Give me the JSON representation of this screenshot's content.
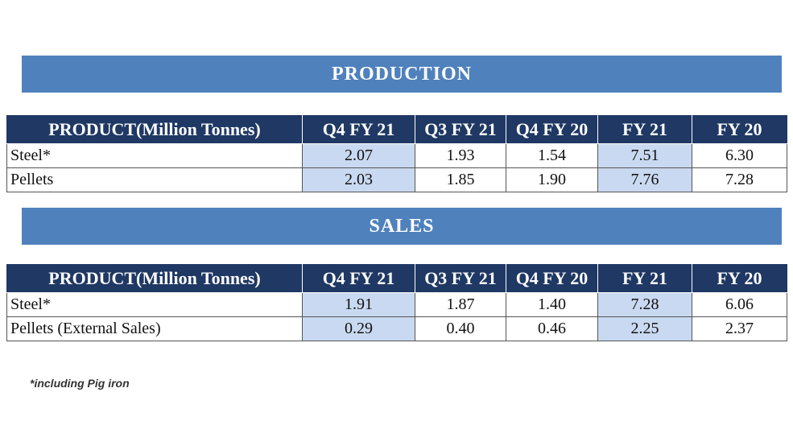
{
  "production": {
    "title": "PRODUCTION",
    "headers": [
      "PRODUCT(Million Tonnes)",
      "Q4 FY 21",
      "Q3 FY 21",
      "Q4 FY 20",
      "FY 21",
      "FY 20"
    ],
    "rows": [
      {
        "product": "Steel*",
        "values": [
          "2.07",
          "1.93",
          "1.54",
          "7.51",
          "6.30"
        ]
      },
      {
        "product": "Pellets",
        "values": [
          "2.03",
          "1.85",
          "1.90",
          "7.76",
          "7.28"
        ]
      }
    ]
  },
  "sales": {
    "title": "SALES",
    "headers": [
      "PRODUCT(Million Tonnes)",
      "Q4 FY 21",
      "Q3 FY 21",
      "Q4 FY 20",
      "FY 21",
      "FY 20"
    ],
    "rows": [
      {
        "product": "Steel*",
        "values": [
          "1.91",
          "1.87",
          "1.40",
          "7.28",
          "6.06"
        ]
      },
      {
        "product": "Pellets (External Sales)",
        "values": [
          "0.29",
          "0.40",
          "0.46",
          "2.25",
          "2.37"
        ]
      }
    ]
  },
  "footnote": "*including Pig iron",
  "colors": {
    "banner": "#4f81bd",
    "header": "#1f3864",
    "highlight": "#c9d9f1"
  }
}
